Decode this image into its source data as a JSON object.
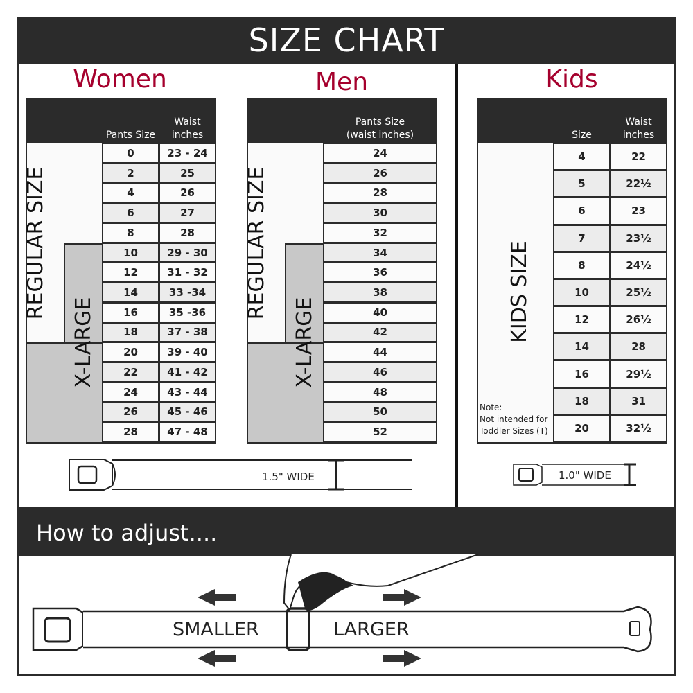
{
  "header": {
    "title": "SIZE CHART"
  },
  "women": {
    "title": "Women",
    "col_headers": [
      "Pants Size",
      "Waist\ninches"
    ],
    "regular_label": "REGULAR SIZE",
    "xlarge_label": "X-LARGE",
    "rows": [
      [
        "0",
        "23 - 24"
      ],
      [
        "2",
        "25"
      ],
      [
        "4",
        "26"
      ],
      [
        "6",
        "27"
      ],
      [
        "8",
        "28"
      ],
      [
        "10",
        "29 - 30"
      ],
      [
        "12",
        "31 - 32"
      ],
      [
        "14",
        "33 -34"
      ],
      [
        "16",
        "35 -36"
      ],
      [
        "18",
        "37 - 38"
      ],
      [
        "20",
        "39 - 40"
      ],
      [
        "22",
        "41 - 42"
      ],
      [
        "24",
        "43 - 44"
      ],
      [
        "26",
        "45 - 46"
      ],
      [
        "28",
        "47 - 48"
      ]
    ],
    "belt_width": "1.5\" WIDE"
  },
  "men": {
    "title": "Men",
    "col_headers": [
      "Pants Size\n(waist inches)"
    ],
    "regular_label": "REGULAR SIZE",
    "xlarge_label": "X-LARGE",
    "rows": [
      [
        "24"
      ],
      [
        "26"
      ],
      [
        "28"
      ],
      [
        "30"
      ],
      [
        "32"
      ],
      [
        "34"
      ],
      [
        "36"
      ],
      [
        "38"
      ],
      [
        "40"
      ],
      [
        "42"
      ],
      [
        "44"
      ],
      [
        "46"
      ],
      [
        "48"
      ],
      [
        "50"
      ],
      [
        "52"
      ]
    ]
  },
  "kids": {
    "title": "Kids",
    "col_headers": [
      "Size",
      "Waist\ninches"
    ],
    "size_label": "KIDS SIZE",
    "note": "Note:\nNot intended for\nToddler Sizes (T)",
    "rows": [
      [
        "4",
        "22"
      ],
      [
        "5",
        "22½"
      ],
      [
        "6",
        "23"
      ],
      [
        "7",
        "23½"
      ],
      [
        "8",
        "24½"
      ],
      [
        "10",
        "25½"
      ],
      [
        "12",
        "26½"
      ],
      [
        "14",
        "28"
      ],
      [
        "16",
        "29½"
      ],
      [
        "18",
        "31"
      ],
      [
        "20",
        "32½"
      ]
    ],
    "belt_width": "1.0\" WIDE"
  },
  "adjust": {
    "title": "How to adjust....",
    "smaller": "SMALLER",
    "larger": "LARGER"
  },
  "colors": {
    "accent": "#a5002d",
    "dark": "#2b2b2b",
    "xlarge_fill": "#c8c8c8"
  }
}
